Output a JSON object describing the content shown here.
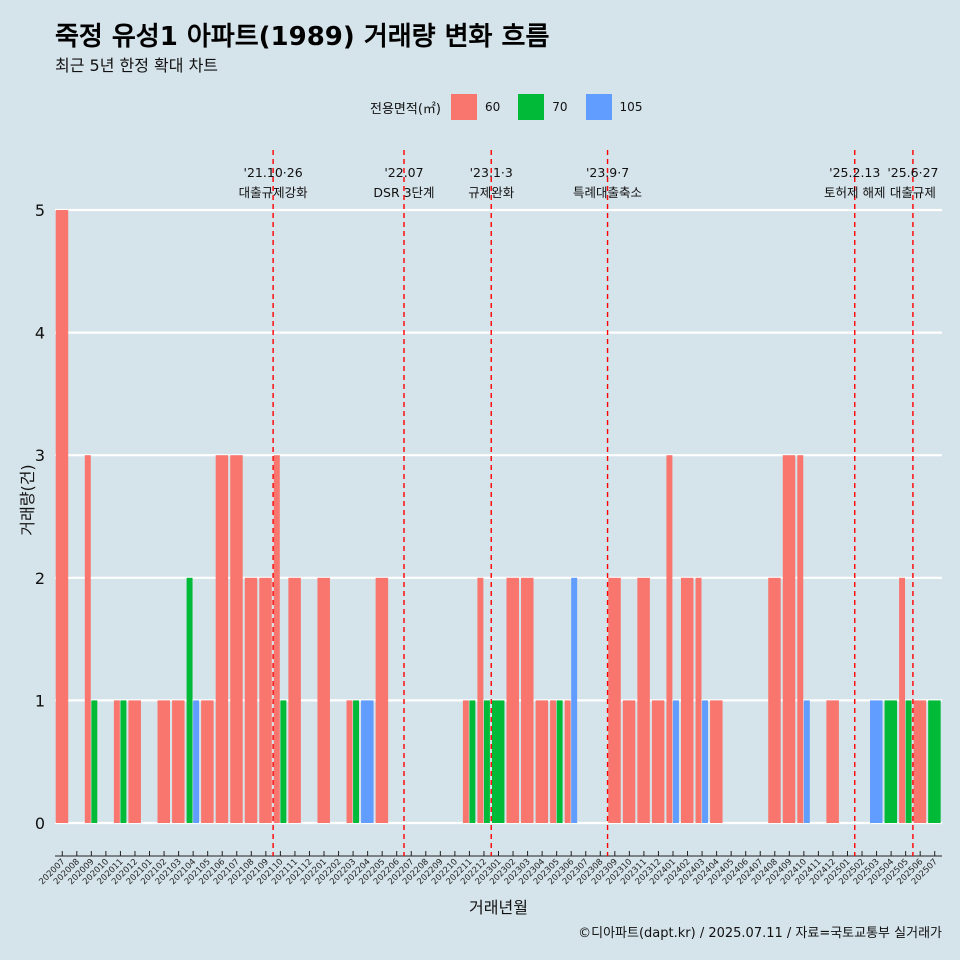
{
  "title": "죽정 유성1 아파트(1989) 거래량 변화 흐름",
  "subtitle": "최근 5년 한정 확대 차트",
  "caption": "©디아파트(dapt.kr) / 2025.07.11 / 자료=국토교통부 실거래가",
  "legend": {
    "title": "전용면적(㎡)",
    "items": [
      {
        "label": "60",
        "color": "#f8766d"
      },
      {
        "label": "70",
        "color": "#00ba38"
      },
      {
        "label": "105",
        "color": "#619cff"
      }
    ]
  },
  "chart_data": {
    "type": "bar",
    "xlabel": "거래년월",
    "ylabel": "거래량(건)",
    "ylim": [
      0,
      5
    ],
    "yticks": [
      0,
      1,
      2,
      3,
      4,
      5
    ],
    "grid": true,
    "legend_position": "top",
    "categories": [
      "202007",
      "202008",
      "202009",
      "202010",
      "202011",
      "202012",
      "202101",
      "202102",
      "202103",
      "202104",
      "202105",
      "202106",
      "202107",
      "202108",
      "202109",
      "202110",
      "202111",
      "202112",
      "202201",
      "202202",
      "202203",
      "202204",
      "202205",
      "202206",
      "202207",
      "202208",
      "202209",
      "202210",
      "202211",
      "202212",
      "202301",
      "202302",
      "202303",
      "202304",
      "202305",
      "202306",
      "202307",
      "202308",
      "202309",
      "202310",
      "202311",
      "202312",
      "202401",
      "202402",
      "202403",
      "202404",
      "202405",
      "202406",
      "202407",
      "202408",
      "202409",
      "202410",
      "202411",
      "202412",
      "202501",
      "202502",
      "202503",
      "202504",
      "202505",
      "202506",
      "202507"
    ],
    "series": [
      {
        "name": "60",
        "color": "#f8766d",
        "values": [
          5,
          0,
          3,
          0,
          1,
          1,
          0,
          1,
          1,
          0,
          1,
          3,
          3,
          2,
          2,
          3,
          2,
          0,
          2,
          0,
          1,
          0,
          2,
          0,
          0,
          0,
          0,
          0,
          1,
          2,
          0,
          2,
          2,
          1,
          1,
          1,
          0,
          0,
          2,
          1,
          2,
          1,
          3,
          2,
          2,
          1,
          0,
          0,
          0,
          2,
          3,
          3,
          0,
          1,
          0,
          0,
          0,
          0,
          2,
          1,
          0
        ]
      },
      {
        "name": "70",
        "color": "#00ba38",
        "values": [
          0,
          0,
          1,
          0,
          1,
          0,
          0,
          0,
          0,
          2,
          0,
          0,
          0,
          0,
          0,
          1,
          0,
          0,
          0,
          0,
          1,
          0,
          0,
          0,
          0,
          0,
          0,
          0,
          1,
          1,
          1,
          0,
          0,
          0,
          1,
          0,
          0,
          0,
          0,
          0,
          0,
          0,
          0,
          0,
          0,
          0,
          0,
          0,
          0,
          0,
          0,
          0,
          0,
          0,
          0,
          0,
          0,
          1,
          1,
          0,
          1
        ]
      },
      {
        "name": "105",
        "color": "#619cff",
        "values": [
          0,
          0,
          0,
          0,
          0,
          0,
          0,
          0,
          0,
          1,
          0,
          0,
          0,
          0,
          0,
          0,
          0,
          0,
          0,
          0,
          0,
          1,
          0,
          0,
          0,
          0,
          0,
          0,
          0,
          0,
          0,
          0,
          0,
          0,
          0,
          2,
          0,
          0,
          0,
          0,
          0,
          0,
          1,
          0,
          1,
          0,
          0,
          0,
          0,
          0,
          0,
          1,
          0,
          0,
          0,
          0,
          1,
          0,
          0,
          0,
          0
        ]
      }
    ],
    "annotations": [
      {
        "after_category": "202109",
        "date": "'21.10·26",
        "label": "대출규제강화"
      },
      {
        "after_category": "202206",
        "date": "'22.07",
        "label": "DSR 3단계"
      },
      {
        "after_category": "202212",
        "date": "'23.1·3",
        "label": "규제완화"
      },
      {
        "after_category": "202308",
        "date": "'23.9·7",
        "label": "특례대출축소"
      },
      {
        "after_category": "202501",
        "date": "'25.2.13",
        "label": "토허제 해제"
      },
      {
        "after_category": "202505",
        "date": "'25.6·27",
        "label": "대출규제"
      }
    ]
  }
}
